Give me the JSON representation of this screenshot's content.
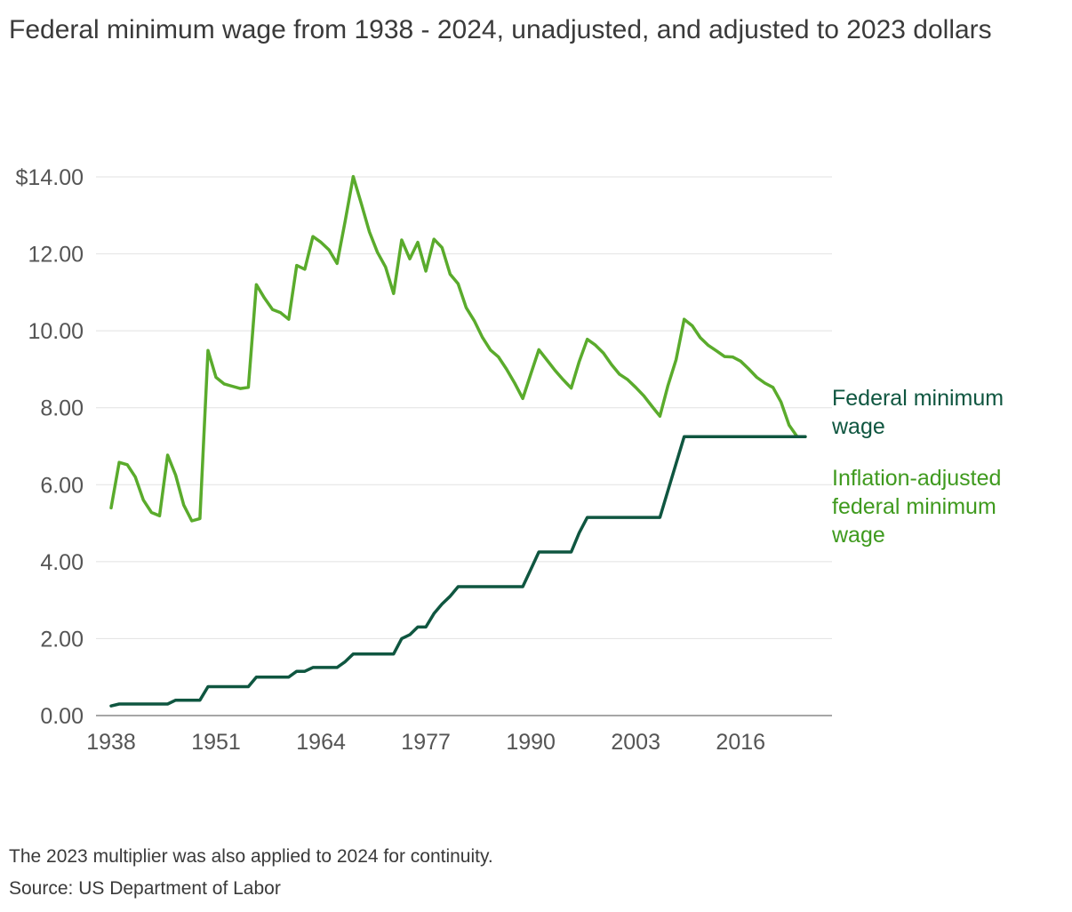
{
  "chart_data": {
    "type": "line",
    "title": "Federal minimum wage from 1938 - 2024, unadjusted, and adjusted to 2023 dollars",
    "xlabel": "",
    "ylabel": "",
    "xlim": [
      1938,
      2024
    ],
    "ylim": [
      0,
      14
    ],
    "x_ticks": [
      1938,
      1951,
      1964,
      1977,
      1990,
      2003,
      2016
    ],
    "y_ticks": [
      {
        "value": 0,
        "label": "0.00"
      },
      {
        "value": 2,
        "label": "2.00"
      },
      {
        "value": 4,
        "label": "4.00"
      },
      {
        "value": 6,
        "label": "6.00"
      },
      {
        "value": 8,
        "label": "8.00"
      },
      {
        "value": 10,
        "label": "10.00"
      },
      {
        "value": 12,
        "label": "12.00"
      },
      {
        "value": 14,
        "label": "$14.00"
      }
    ],
    "series": [
      {
        "name": "Federal minimum wage",
        "label_lines": [
          "Federal minimum",
          "wage"
        ],
        "color": "#0f5640",
        "x": [
          1938,
          1939,
          1940,
          1941,
          1942,
          1943,
          1944,
          1945,
          1946,
          1947,
          1948,
          1949,
          1950,
          1951,
          1952,
          1953,
          1954,
          1955,
          1956,
          1957,
          1958,
          1959,
          1960,
          1961,
          1962,
          1963,
          1964,
          1965,
          1966,
          1967,
          1968,
          1969,
          1970,
          1971,
          1972,
          1973,
          1974,
          1975,
          1976,
          1977,
          1978,
          1979,
          1980,
          1981,
          1982,
          1983,
          1984,
          1985,
          1986,
          1987,
          1988,
          1989,
          1990,
          1991,
          1992,
          1993,
          1994,
          1995,
          1996,
          1997,
          1998,
          1999,
          2000,
          2001,
          2002,
          2003,
          2004,
          2005,
          2006,
          2007,
          2008,
          2009,
          2010,
          2011,
          2012,
          2013,
          2014,
          2015,
          2016,
          2017,
          2018,
          2019,
          2020,
          2021,
          2022,
          2023,
          2024
        ],
        "values": [
          0.25,
          0.3,
          0.3,
          0.3,
          0.3,
          0.3,
          0.3,
          0.3,
          0.4,
          0.4,
          0.4,
          0.4,
          0.75,
          0.75,
          0.75,
          0.75,
          0.75,
          0.75,
          1.0,
          1.0,
          1.0,
          1.0,
          1.0,
          1.15,
          1.15,
          1.25,
          1.25,
          1.25,
          1.25,
          1.4,
          1.6,
          1.6,
          1.6,
          1.6,
          1.6,
          1.6,
          2.0,
          2.1,
          2.3,
          2.3,
          2.65,
          2.9,
          3.1,
          3.35,
          3.35,
          3.35,
          3.35,
          3.35,
          3.35,
          3.35,
          3.35,
          3.35,
          3.8,
          4.25,
          4.25,
          4.25,
          4.25,
          4.25,
          4.75,
          5.15,
          5.15,
          5.15,
          5.15,
          5.15,
          5.15,
          5.15,
          5.15,
          5.15,
          5.15,
          5.85,
          6.55,
          7.25,
          7.25,
          7.25,
          7.25,
          7.25,
          7.25,
          7.25,
          7.25,
          7.25,
          7.25,
          7.25,
          7.25,
          7.25,
          7.25,
          7.25,
          7.25
        ]
      },
      {
        "name": "Inflation-adjusted federal minimum wage",
        "label_lines": [
          "Inflation-adjusted",
          "federal minimum",
          "wage"
        ],
        "color": "#5aab2c",
        "label_color": "#3f9a1e",
        "x": [
          1938,
          1939,
          1940,
          1941,
          1942,
          1943,
          1944,
          1945,
          1946,
          1947,
          1948,
          1949,
          1950,
          1951,
          1952,
          1953,
          1954,
          1955,
          1956,
          1957,
          1958,
          1959,
          1960,
          1961,
          1962,
          1963,
          1964,
          1965,
          1966,
          1967,
          1968,
          1969,
          1970,
          1971,
          1972,
          1973,
          1974,
          1975,
          1976,
          1977,
          1978,
          1979,
          1980,
          1981,
          1982,
          1983,
          1984,
          1985,
          1986,
          1987,
          1988,
          1989,
          1990,
          1991,
          1992,
          1993,
          1994,
          1995,
          1996,
          1997,
          1998,
          1999,
          2000,
          2001,
          2002,
          2003,
          2004,
          2005,
          2006,
          2007,
          2008,
          2009,
          2010,
          2011,
          2012,
          2013,
          2014,
          2015,
          2016,
          2017,
          2018,
          2019,
          2020,
          2021,
          2022,
          2023,
          2024
        ],
        "values": [
          5.4,
          6.58,
          6.52,
          6.2,
          5.6,
          5.28,
          5.19,
          6.77,
          6.25,
          5.47,
          5.06,
          5.12,
          9.49,
          8.79,
          8.62,
          8.56,
          8.5,
          8.53,
          11.2,
          10.85,
          10.55,
          10.47,
          10.3,
          11.7,
          11.6,
          12.45,
          12.3,
          12.1,
          11.75,
          12.85,
          14.01,
          13.3,
          12.57,
          12.04,
          11.66,
          10.97,
          12.36,
          11.87,
          12.3,
          11.55,
          12.38,
          12.16,
          11.47,
          11.22,
          10.6,
          10.26,
          9.83,
          9.5,
          9.32,
          9.0,
          8.64,
          8.24,
          8.88,
          9.51,
          9.24,
          8.97,
          8.73,
          8.51,
          9.2,
          9.78,
          9.63,
          9.42,
          9.12,
          8.87,
          8.73,
          8.53,
          8.31,
          8.04,
          7.78,
          8.58,
          9.25,
          10.3,
          10.13,
          9.82,
          9.62,
          9.48,
          9.33,
          9.32,
          9.21,
          9.01,
          8.79,
          8.64,
          8.53,
          8.15,
          7.55,
          7.25,
          7.25
        ]
      }
    ],
    "notes": [
      "The 2023 multiplier was also applied to 2024 for continuity.",
      "Source: US Department of Labor"
    ]
  }
}
